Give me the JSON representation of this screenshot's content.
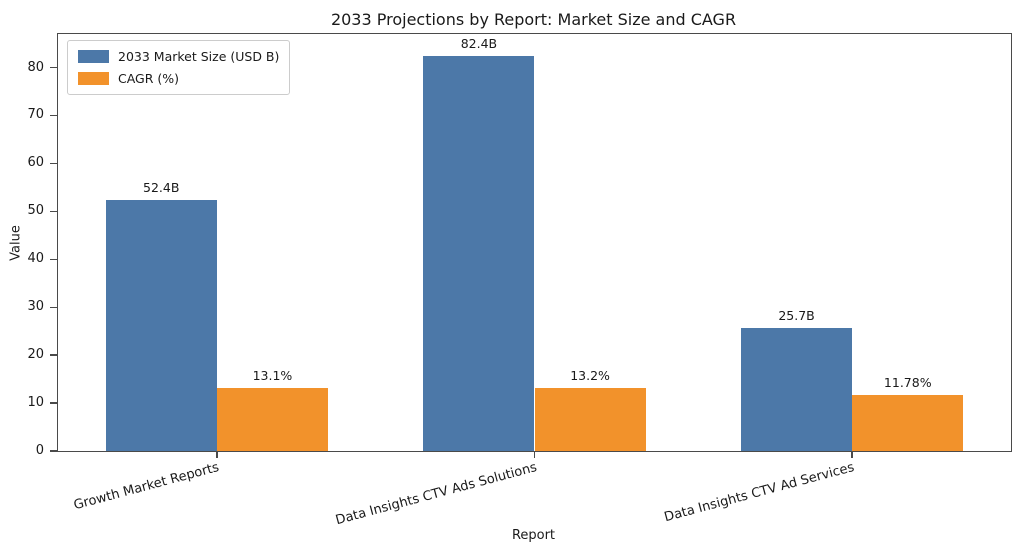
{
  "chart_data": {
    "type": "bar",
    "title": "2033 Projections by Report: Market Size and CAGR",
    "xlabel": "Report",
    "ylabel": "Value",
    "categories": [
      "Growth Market Reports",
      "Data Insights CTV Ads Solutions",
      "Data Insights CTV Ad Services"
    ],
    "series": [
      {
        "name": "2033 Market Size (USD B)",
        "color": "#4C78A8",
        "values": [
          52.4,
          82.4,
          25.7
        ],
        "labels": [
          "52.4B",
          "82.4B",
          "25.7B"
        ]
      },
      {
        "name": "CAGR (%)",
        "color": "#F2922B",
        "values": [
          13.1,
          13.2,
          11.78
        ],
        "labels": [
          "13.1%",
          "13.2%",
          "11.78%"
        ]
      }
    ],
    "yticks": [
      0,
      10,
      20,
      30,
      40,
      50,
      60,
      70,
      80
    ],
    "ylim": [
      0,
      87
    ],
    "grid": false,
    "legend_position": "upper left",
    "bar_group_width_fraction": 0.35,
    "x_tick_rotation_deg": 15
  }
}
